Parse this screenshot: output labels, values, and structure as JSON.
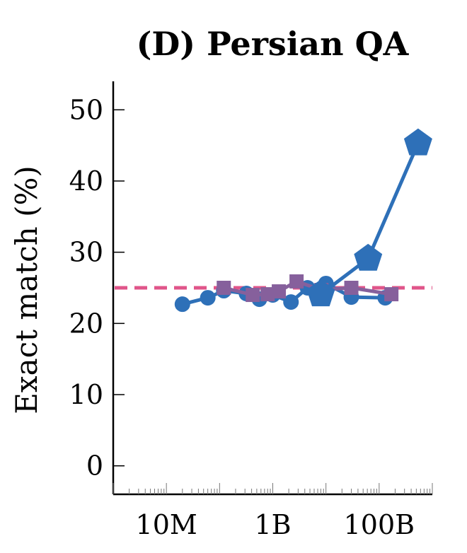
{
  "chart_data": {
    "type": "line",
    "title": "(D) Persian QA",
    "xlabel": "",
    "ylabel": "Exact match (%)",
    "xscale": "log",
    "xlim": [
      1000000,
      1000000000000
    ],
    "ylim": [
      -4,
      54
    ],
    "x_ticks": [
      {
        "value": 10000000,
        "label": "10M"
      },
      {
        "value": 1000000000,
        "label": "1B"
      },
      {
        "value": 100000000000,
        "label": "100B"
      }
    ],
    "y_ticks": [
      0,
      10,
      20,
      30,
      40,
      50
    ],
    "grid": false,
    "legend": "none",
    "series": [
      {
        "marker": "circle",
        "color": "#2e70b8",
        "points": [
          [
            20000000,
            22.7
          ],
          [
            60000000,
            23.6
          ],
          [
            120000000,
            24.6
          ],
          [
            320000000,
            24.2
          ],
          [
            560000000,
            23.4
          ],
          [
            1000000000,
            24.0
          ],
          [
            2200000000,
            23.0
          ],
          [
            4500000000,
            25.0
          ],
          [
            10000000000,
            25.6
          ],
          [
            30000000000,
            23.7
          ],
          [
            130000000000,
            23.6
          ]
        ]
      },
      {
        "marker": "square",
        "color": "#86609c",
        "points": [
          [
            120000000,
            25.0
          ],
          [
            420000000,
            24.0
          ],
          [
            800000000,
            24.1
          ],
          [
            1300000000,
            24.5
          ],
          [
            2800000000,
            25.9
          ],
          [
            8200000000,
            24.7
          ],
          [
            30000000000,
            25.0
          ],
          [
            170000000000,
            24.1
          ]
        ]
      },
      {
        "marker": "pentagon",
        "color": "#2e70b8",
        "points": [
          [
            8000000000,
            24.1
          ],
          [
            62000000000,
            29.1
          ],
          [
            540000000000,
            45.3
          ]
        ]
      }
    ],
    "reference_line": {
      "value": 25,
      "color": "#e0558a",
      "style": "dashed"
    }
  }
}
